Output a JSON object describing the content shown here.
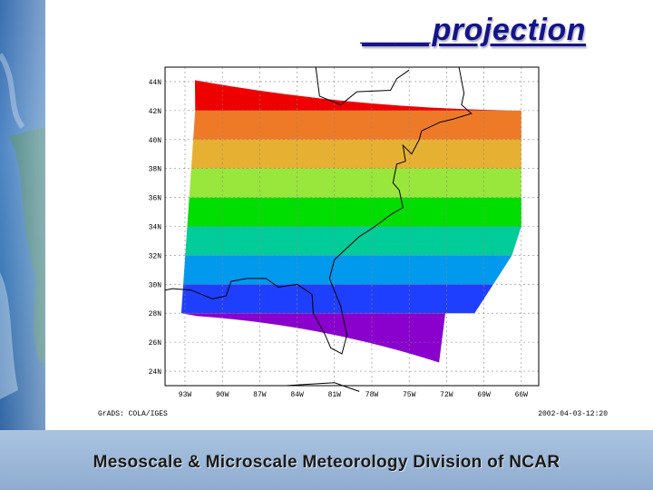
{
  "slide": {
    "title": "____projection",
    "footer": "Mesoscale & Microscale Meteorology Division of NCAR"
  },
  "map": {
    "software_label": "GrADS: COLA/IGES",
    "timestamp": "2002-04-03-12:20",
    "lat_ticks": [
      "24N",
      "26N",
      "28N",
      "30N",
      "32N",
      "34N",
      "36N",
      "38N",
      "40N",
      "42N",
      "44N"
    ],
    "lon_ticks": [
      "93W",
      "90W",
      "87W",
      "84W",
      "81W",
      "78W",
      "75W",
      "72W",
      "69W",
      "66W"
    ],
    "band_colors": [
      "#8a00cc",
      "#6a00dd",
      "#1f3fff",
      "#0099ee",
      "#00cc99",
      "#00dd00",
      "#99e63c",
      "#e6b032",
      "#ee7a28",
      "#ee0000"
    ],
    "colors": {
      "title": "#14148c",
      "footer_bg": "#9db8d8",
      "strip": "#3a6fb0"
    }
  }
}
